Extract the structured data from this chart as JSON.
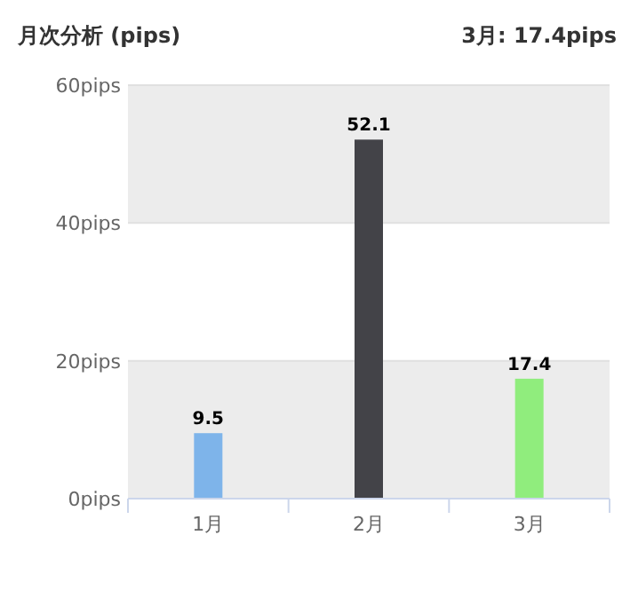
{
  "chart_data": {
    "type": "bar",
    "title": "月次分析 (pips)",
    "subtitle": "3月: 17.4pips",
    "categories": [
      "1月",
      "2月",
      "3月"
    ],
    "values": [
      9.5,
      52.1,
      17.4
    ],
    "colors": [
      "#7eb4ea",
      "#434348",
      "#90ed7d"
    ],
    "ylim": [
      0,
      60
    ],
    "yticks": [
      {
        "value": 0,
        "label": "0pips"
      },
      {
        "value": 20,
        "label": "20pips"
      },
      {
        "value": 40,
        "label": "40pips"
      },
      {
        "value": 60,
        "label": "60pips"
      }
    ],
    "bands": [
      {
        "axis": "y",
        "from": 0,
        "to": 20,
        "color": "#ececec"
      },
      {
        "axis": "y",
        "from": 40,
        "to": 60,
        "color": "#ececec"
      }
    ],
    "grid": "y",
    "data_labels": true
  }
}
